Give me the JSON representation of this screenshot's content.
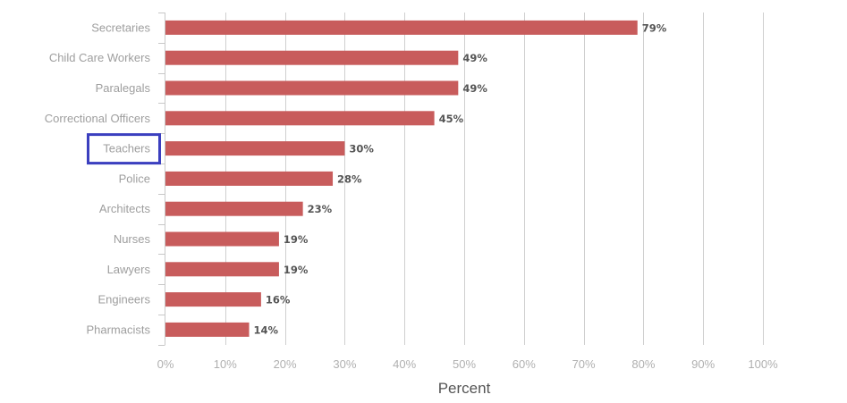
{
  "chart_data": {
    "type": "bar",
    "orientation": "horizontal",
    "categories": [
      "Secretaries",
      "Child Care Workers",
      "Paralegals",
      "Correctional Officers",
      "Teachers",
      "Police",
      "Architects",
      "Nurses",
      "Lawyers",
      "Engineers",
      "Pharmacists"
    ],
    "values": [
      79,
      49,
      49,
      45,
      30,
      28,
      23,
      19,
      19,
      16,
      14
    ],
    "value_labels": [
      "79%",
      "49%",
      "49%",
      "45%",
      "30%",
      "28%",
      "23%",
      "19%",
      "19%",
      "16%",
      "14%"
    ],
    "xticks": [
      0,
      10,
      20,
      30,
      40,
      50,
      60,
      70,
      80,
      90,
      100
    ],
    "xtick_labels": [
      "0%",
      "10%",
      "20%",
      "30%",
      "40%",
      "50%",
      "60%",
      "70%",
      "80%",
      "90%",
      "100%"
    ],
    "xlim": [
      0,
      100
    ],
    "xlabel": "Percent",
    "ylabel": "",
    "title": "",
    "grid": "vertical",
    "legend": "none",
    "highlighted_category": "Teachers",
    "colors": {
      "bar": "#c85c5c",
      "highlight": "#3b3fbf"
    }
  }
}
